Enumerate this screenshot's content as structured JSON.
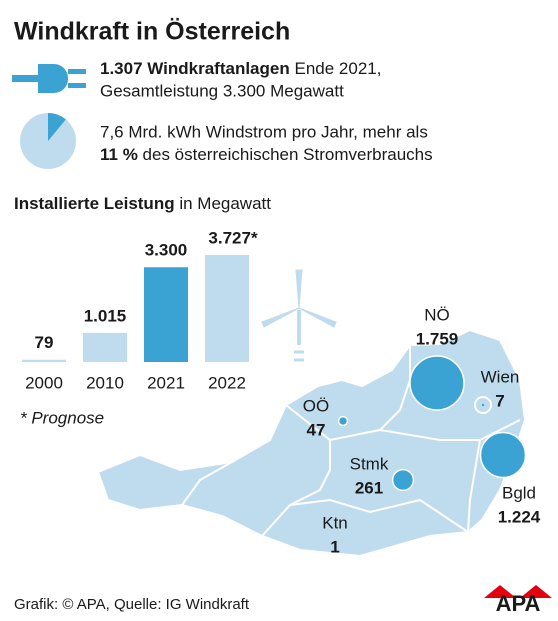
{
  "header": {
    "title": "Windkraft in Österreich"
  },
  "facts": {
    "line1_bold": "1.307 Windkraftanlagen",
    "line1_rest": "Ende 2021,",
    "line2": "Gesamtleistung 3.300 Megawatt",
    "line3": "7,6 Mrd. kWh Windstrom pro Jahr, mehr als",
    "share": {
      "value": 11,
      "label": "11 %"
    },
    "line4_rest": "des österreichischen Stromverbrauchs"
  },
  "chart_data": {
    "type": "bar",
    "title": "Installierte Leistung",
    "subtitle": "in Megawatt",
    "categories": [
      "2000",
      "2010",
      "2021",
      "2022"
    ],
    "values": [
      79,
      1015,
      3300,
      3727
    ],
    "value_labels": [
      "79",
      "1.015",
      "3.300",
      "3.727*"
    ],
    "colors": [
      "#bfdcee",
      "#bfdcee",
      "#3aa3d4",
      "#bfdcee"
    ],
    "note": "* Prognose"
  },
  "map": {
    "color": "#3aa3d4",
    "regions": [
      {
        "name": "NÖ",
        "value": 1759,
        "label": "1.759"
      },
      {
        "name": "Wien",
        "value": 7,
        "label": "7"
      },
      {
        "name": "OÖ",
        "value": 47,
        "label": "47"
      },
      {
        "name": "Stmk",
        "value": 261,
        "label": "261"
      },
      {
        "name": "Bgld",
        "value": 1224,
        "label": "1.224"
      },
      {
        "name": "Ktn",
        "value": 1,
        "label": "1"
      }
    ]
  },
  "footer": {
    "source": "Grafik: © APA, Quelle: IG Windkraft",
    "logo": "APA"
  }
}
